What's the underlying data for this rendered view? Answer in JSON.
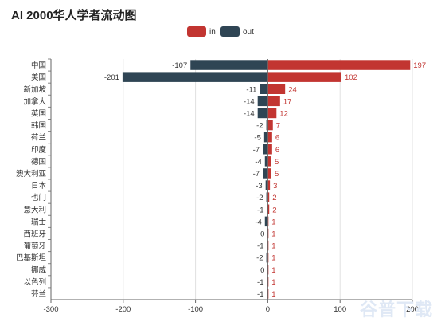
{
  "title": "AI 2000华人学者流动图",
  "watermark": "谷普下载",
  "chart_data": {
    "type": "bar",
    "orientation": "horizontal",
    "title": "AI 2000华人学者流动图",
    "categories": [
      "中国",
      "美国",
      "新加坡",
      "加拿大",
      "英国",
      "韩国",
      "荷兰",
      "印度",
      "德国",
      "澳大利亚",
      "日本",
      "也门",
      "意大利",
      "瑞士",
      "西班牙",
      "葡萄牙",
      "巴基斯坦",
      "挪威",
      "以色列",
      "芬兰"
    ],
    "series": [
      {
        "name": "in",
        "color": "#c23531",
        "values": [
          197,
          102,
          24,
          17,
          12,
          7,
          6,
          6,
          5,
          5,
          3,
          2,
          2,
          1,
          1,
          1,
          1,
          1,
          1,
          1
        ]
      },
      {
        "name": "out",
        "color": "#2f4554",
        "values": [
          -107,
          -201,
          -11,
          -14,
          -14,
          -2,
          -5,
          -7,
          -4,
          -7,
          -3,
          -2,
          -1,
          -4,
          0,
          -1,
          -2,
          0,
          -1,
          -1
        ]
      }
    ],
    "xlim": [
      -300,
      200
    ],
    "xticks": [
      -300,
      -200,
      -100,
      0,
      100,
      200
    ],
    "legend_position": "top-center",
    "grid": true
  }
}
